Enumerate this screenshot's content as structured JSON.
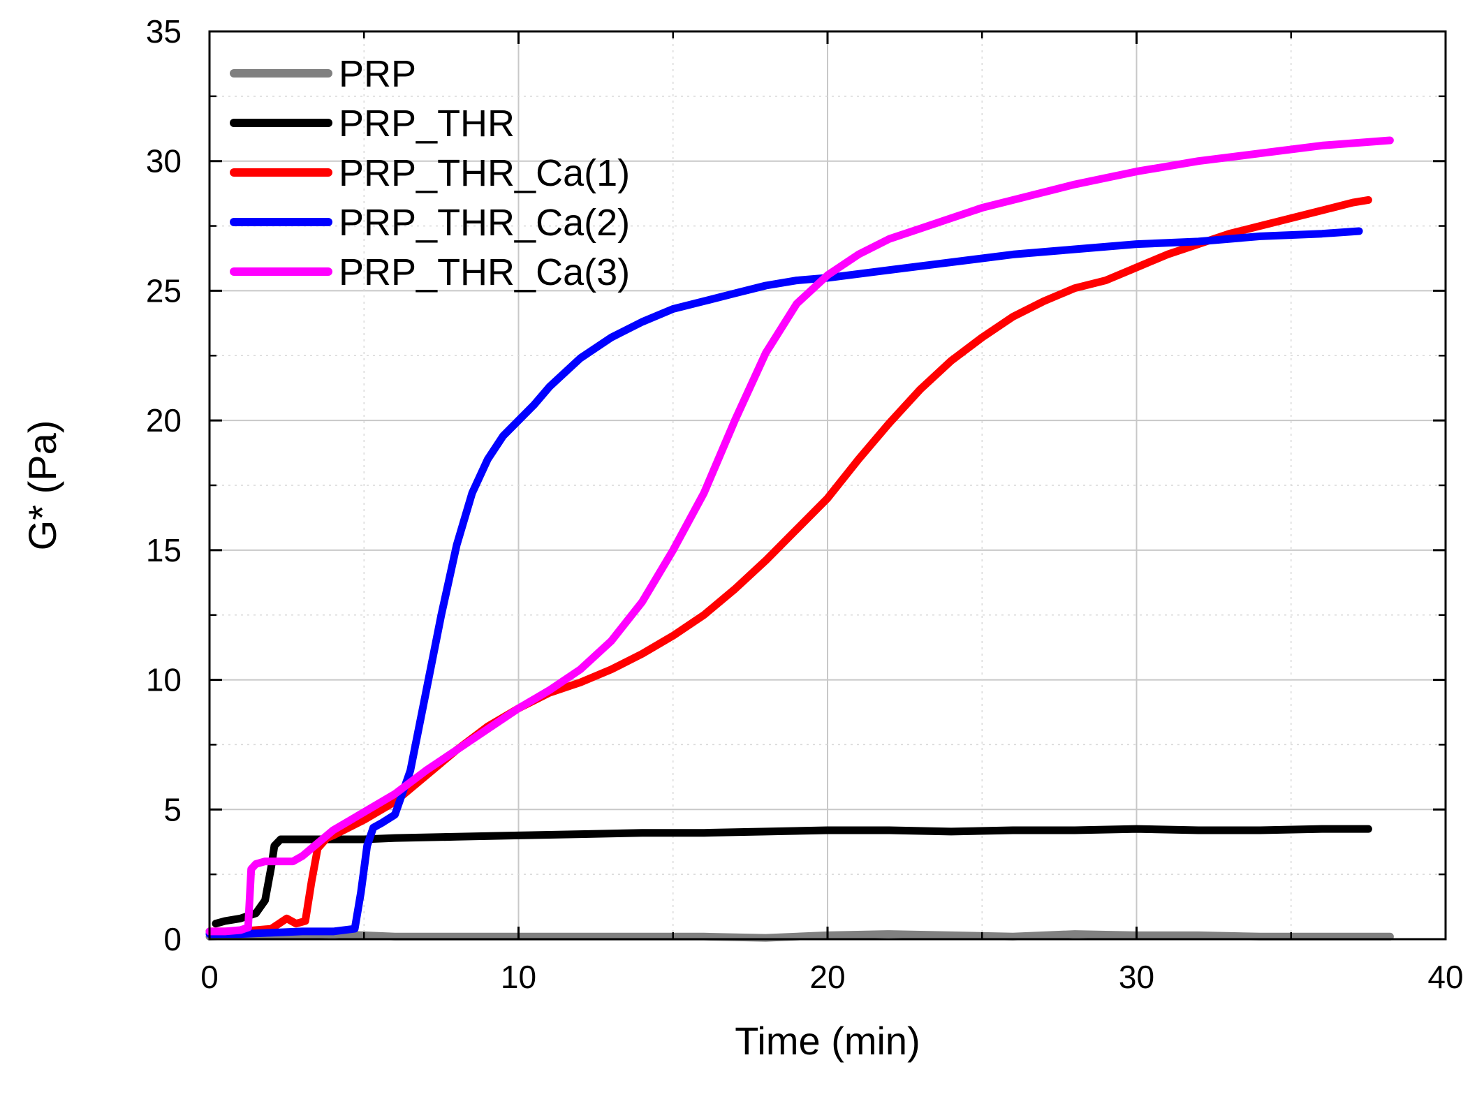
{
  "chart_data": {
    "type": "line",
    "title": "",
    "xlabel": "Time (min)",
    "ylabel": "G* (Pa)",
    "xlim": [
      0,
      40
    ],
    "ylim": [
      0,
      35
    ],
    "xticks": [
      0,
      10,
      20,
      30,
      40
    ],
    "yticks": [
      0,
      5,
      10,
      15,
      20,
      25,
      30,
      35
    ],
    "grid": true,
    "legend": "top-left",
    "series": [
      {
        "name": "PRP",
        "color": "#808080",
        "x": [
          0,
          2,
          4,
          6,
          8,
          10,
          12,
          14,
          16,
          18,
          20,
          22,
          24,
          26,
          28,
          30,
          32,
          34,
          36,
          38.2
        ],
        "y": [
          0.1,
          0.15,
          0.2,
          0.1,
          0.1,
          0.1,
          0.1,
          0.1,
          0.1,
          0.05,
          0.15,
          0.2,
          0.15,
          0.1,
          0.2,
          0.15,
          0.15,
          0.1,
          0.1,
          0.1
        ]
      },
      {
        "name": "PRP_THR",
        "color": "#000000",
        "x": [
          0.2,
          0.5,
          1.0,
          1.5,
          1.8,
          2.0,
          2.1,
          2.3,
          3,
          4,
          5,
          6,
          8,
          10,
          12,
          14,
          16,
          18,
          20,
          22,
          24,
          26,
          28,
          30,
          32,
          34,
          36,
          37.5
        ],
        "y": [
          0.6,
          0.7,
          0.8,
          1.0,
          1.5,
          2.8,
          3.6,
          3.85,
          3.85,
          3.85,
          3.85,
          3.9,
          3.95,
          4.0,
          4.05,
          4.1,
          4.1,
          4.15,
          4.2,
          4.2,
          4.15,
          4.2,
          4.2,
          4.25,
          4.2,
          4.2,
          4.25,
          4.25
        ]
      },
      {
        "name": "PRP_THR_Ca(1)",
        "color": "#ff0000",
        "x": [
          0,
          0.5,
          1,
          1.5,
          2,
          2.5,
          2.8,
          3.1,
          3.3,
          3.5,
          3.8,
          4,
          5,
          6,
          7,
          8,
          9,
          10,
          11,
          12,
          13,
          14,
          15,
          16,
          17,
          18,
          19,
          20,
          21,
          22,
          23,
          24,
          25,
          26,
          27,
          28,
          29,
          30,
          31,
          32,
          33,
          34,
          35,
          36,
          37,
          37.5
        ],
        "y": [
          0.3,
          0.3,
          0.3,
          0.35,
          0.4,
          0.8,
          0.6,
          0.7,
          2.2,
          3.5,
          3.9,
          4.0,
          4.6,
          5.3,
          6.3,
          7.3,
          8.2,
          8.9,
          9.5,
          9.9,
          10.4,
          11.0,
          11.7,
          12.5,
          13.5,
          14.6,
          15.8,
          17.0,
          18.5,
          19.9,
          21.2,
          22.3,
          23.2,
          24.0,
          24.6,
          25.1,
          25.4,
          25.9,
          26.4,
          26.8,
          27.2,
          27.5,
          27.8,
          28.1,
          28.4,
          28.5
        ]
      },
      {
        "name": "PRP_THR_Ca(2)",
        "color": "#0000ff",
        "x": [
          0,
          1,
          2,
          3,
          4,
          4.7,
          4.9,
          5.1,
          5.3,
          5.6,
          6,
          6.5,
          7,
          7.5,
          8,
          8.5,
          9,
          9.5,
          10,
          10.5,
          11,
          12,
          13,
          14,
          15,
          16,
          17,
          18,
          19,
          20,
          22,
          24,
          26,
          28,
          30,
          32,
          34,
          36,
          37.2
        ],
        "y": [
          0.2,
          0.2,
          0.25,
          0.3,
          0.3,
          0.4,
          1.8,
          3.6,
          4.3,
          4.5,
          4.8,
          6.5,
          9.5,
          12.5,
          15.2,
          17.2,
          18.5,
          19.4,
          20.0,
          20.6,
          21.3,
          22.4,
          23.2,
          23.8,
          24.3,
          24.6,
          24.9,
          25.2,
          25.4,
          25.5,
          25.8,
          26.1,
          26.4,
          26.6,
          26.8,
          26.9,
          27.1,
          27.2,
          27.3
        ]
      },
      {
        "name": "PRP_THR_Ca(3)",
        "color": "#ff00ff",
        "x": [
          0,
          0.5,
          1.0,
          1.25,
          1.35,
          1.5,
          1.8,
          2.2,
          2.7,
          3,
          4,
          5,
          6,
          7,
          8,
          9,
          10,
          11,
          12,
          13,
          14,
          15,
          16,
          17,
          18,
          19,
          20,
          21,
          22,
          23,
          24,
          25,
          26,
          28,
          30,
          32,
          34,
          36,
          38.2
        ],
        "y": [
          0.3,
          0.3,
          0.35,
          0.45,
          2.7,
          2.9,
          3.0,
          3.0,
          3.0,
          3.2,
          4.2,
          4.9,
          5.6,
          6.5,
          7.3,
          8.1,
          8.9,
          9.6,
          10.4,
          11.5,
          13.0,
          15.0,
          17.2,
          20.0,
          22.6,
          24.5,
          25.6,
          26.4,
          27.0,
          27.4,
          27.8,
          28.2,
          28.5,
          29.1,
          29.6,
          30.0,
          30.3,
          30.6,
          30.8
        ]
      }
    ]
  }
}
